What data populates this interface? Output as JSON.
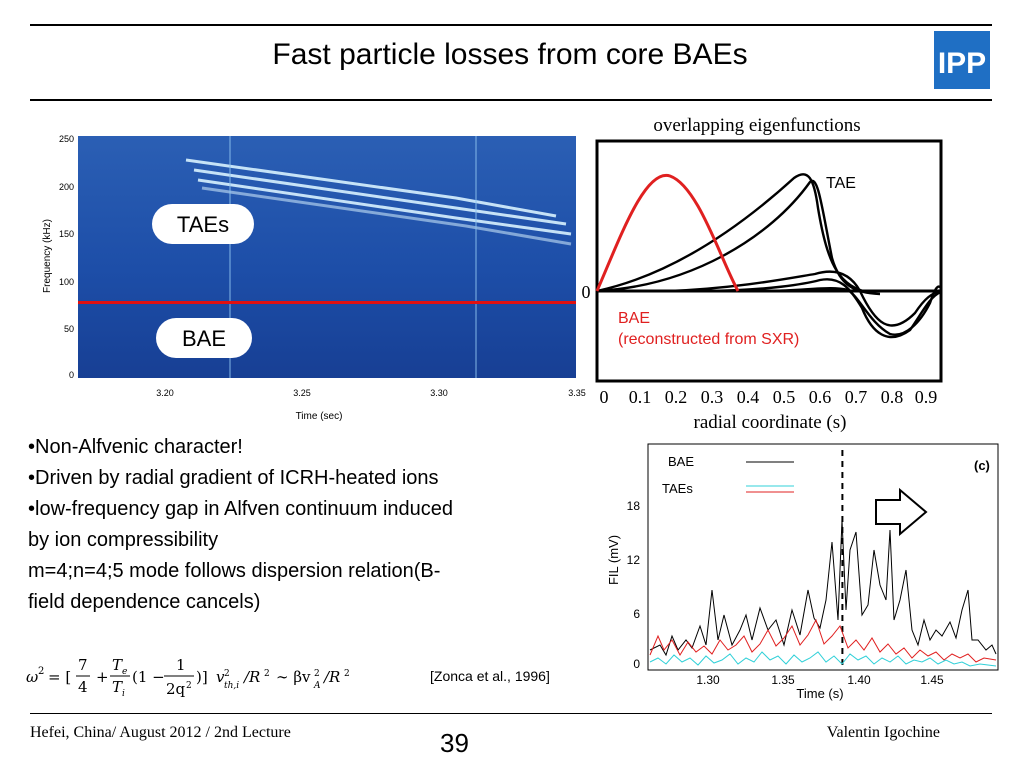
{
  "slide": {
    "title": "Fast particle losses from core BAEs",
    "logo_text": "IPP"
  },
  "spectrogram": {
    "ylabel": "Frequency (kHz)",
    "xlabel": "Time (sec)",
    "yticks": [
      "250",
      "200",
      "150",
      "100",
      "50",
      "0"
    ],
    "xticks": [
      "3.20",
      "3.25",
      "3.30",
      "3.35"
    ],
    "label_taes": "TAEs",
    "label_bae": "BAE",
    "bae_frequency_khz": 78
  },
  "eigenfunctions": {
    "title": "overlapping eigenfunctions",
    "xlabel": "radial coordinate (s)",
    "xticks": [
      "0",
      "0.1",
      "0.2",
      "0.3",
      "0.4",
      "0.5",
      "0.6",
      "0.7",
      "0.8",
      "0.9"
    ],
    "zero_label": "0",
    "tae_label": "TAE",
    "bae_label": "BAE",
    "bae_note": "(reconstructed from SXR)",
    "bae_color": "#e02020"
  },
  "fil_chart": {
    "ylabel": "FIL (mV)",
    "xlabel": "Time (s)",
    "yticks": [
      "0",
      "6",
      "12",
      "18"
    ],
    "xticks": [
      "1.30",
      "1.35",
      "1.40",
      "1.45"
    ],
    "panel_label": "(c)",
    "legend": [
      "BAE",
      "TAEs"
    ],
    "dashed_time": 1.39
  },
  "bullets": [
    "•Non-Alfvenic character!",
    "•Driven by radial gradient of ICRH-heated ions",
    "•low-frequency gap in Alfven continuum induced",
    "by ion compressibility",
    "m=4;n=4;5 mode follows dispersion relation(B-",
    "field dependence cancels)"
  ],
  "citation": "[Zonca et al., 1996]",
  "footer": {
    "left": "Hefei, China/ August 2012 / 2nd Lecture",
    "page": "39",
    "right": "Valentin Igochine"
  }
}
